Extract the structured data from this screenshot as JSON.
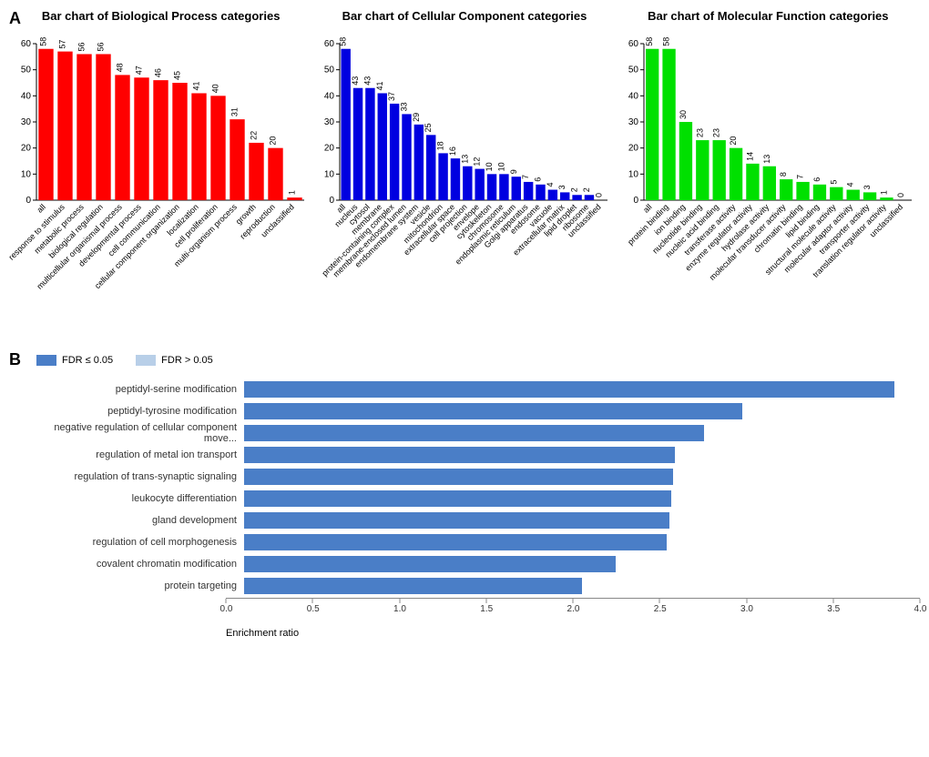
{
  "panelA": {
    "label": "A",
    "charts": [
      {
        "title": "Bar chart of Biological Process categories",
        "color": "#ff0000",
        "ylim": 60,
        "ytick_step": 10,
        "categories": [
          "all",
          "response to stimulus",
          "metabolic process",
          "biological regulation",
          "multicellular organismal process",
          "developmental process",
          "cell communication",
          "cellular component organization",
          "localization",
          "cell proliferation",
          "multi-organism process",
          "growth",
          "reproduction",
          "unclassified"
        ],
        "values": [
          58,
          57,
          56,
          56,
          48,
          47,
          46,
          45,
          41,
          40,
          31,
          22,
          20,
          1
        ]
      },
      {
        "title": "Bar chart of Cellular Component categories",
        "color": "#0000e0",
        "ylim": 60,
        "ytick_step": 10,
        "categories": [
          "all",
          "nucleus",
          "cytosol",
          "membrane",
          "protein-containing complex",
          "membrane-enclosed lumen",
          "endomembrane system",
          "vesicle",
          "mitochondrion",
          "extracellular space",
          "cell projection",
          "envelope",
          "cytoskeleton",
          "chromosome",
          "endoplasmic reticulum",
          "Golgi apparatus",
          "endosome",
          "vacuole",
          "extracellular matrix",
          "lipid droplet",
          "ribosome",
          "unclassified"
        ],
        "values": [
          58,
          43,
          43,
          41,
          37,
          33,
          29,
          25,
          18,
          16,
          13,
          12,
          10,
          10,
          9,
          7,
          6,
          4,
          3,
          2,
          2,
          0
        ]
      },
      {
        "title": "Bar chart of Molecular Function categories",
        "color": "#00e000",
        "ylim": 60,
        "ytick_step": 10,
        "categories": [
          "all",
          "protein binding",
          "ion binding",
          "nucleotide binding",
          "nucleic acid binding",
          "transferase activity",
          "enzyme regulator activity",
          "hydrolase activity",
          "molecular transducer activity",
          "chromatin binding",
          "lipid binding",
          "structural molecule activity",
          "molecular adaptor activity",
          "transporter activity",
          "translation regulator activity",
          "unclassified"
        ],
        "values": [
          58,
          58,
          30,
          23,
          23,
          20,
          14,
          13,
          8,
          7,
          6,
          5,
          4,
          3,
          1,
          0
        ]
      }
    ]
  },
  "panelB": {
    "label": "B",
    "legend": [
      {
        "label": "FDR ≤ 0.05",
        "color": "#4a7ec7"
      },
      {
        "label": "FDR > 0.05",
        "color": "#b8cfe8"
      }
    ],
    "axis_label": "Enrichment ratio",
    "xmax": 4.0,
    "xtick_step": 0.5,
    "bars": [
      {
        "label": "peptidyl-serine modification",
        "value": 3.85,
        "color": "#4a7ec7"
      },
      {
        "label": "peptidyl-tyrosine modification",
        "value": 2.95,
        "color": "#4a7ec7"
      },
      {
        "label": "negative regulation of cellular component move...",
        "value": 2.72,
        "color": "#4a7ec7"
      },
      {
        "label": "regulation of metal ion transport",
        "value": 2.55,
        "color": "#4a7ec7"
      },
      {
        "label": "regulation of trans-synaptic signaling",
        "value": 2.54,
        "color": "#4a7ec7"
      },
      {
        "label": "leukocyte differentiation",
        "value": 2.53,
        "color": "#4a7ec7"
      },
      {
        "label": "gland development",
        "value": 2.52,
        "color": "#4a7ec7"
      },
      {
        "label": "regulation of cell morphogenesis",
        "value": 2.5,
        "color": "#4a7ec7"
      },
      {
        "label": "covalent chromatin modification",
        "value": 2.2,
        "color": "#4a7ec7"
      },
      {
        "label": "protein targeting",
        "value": 2.0,
        "color": "#4a7ec7"
      }
    ]
  }
}
